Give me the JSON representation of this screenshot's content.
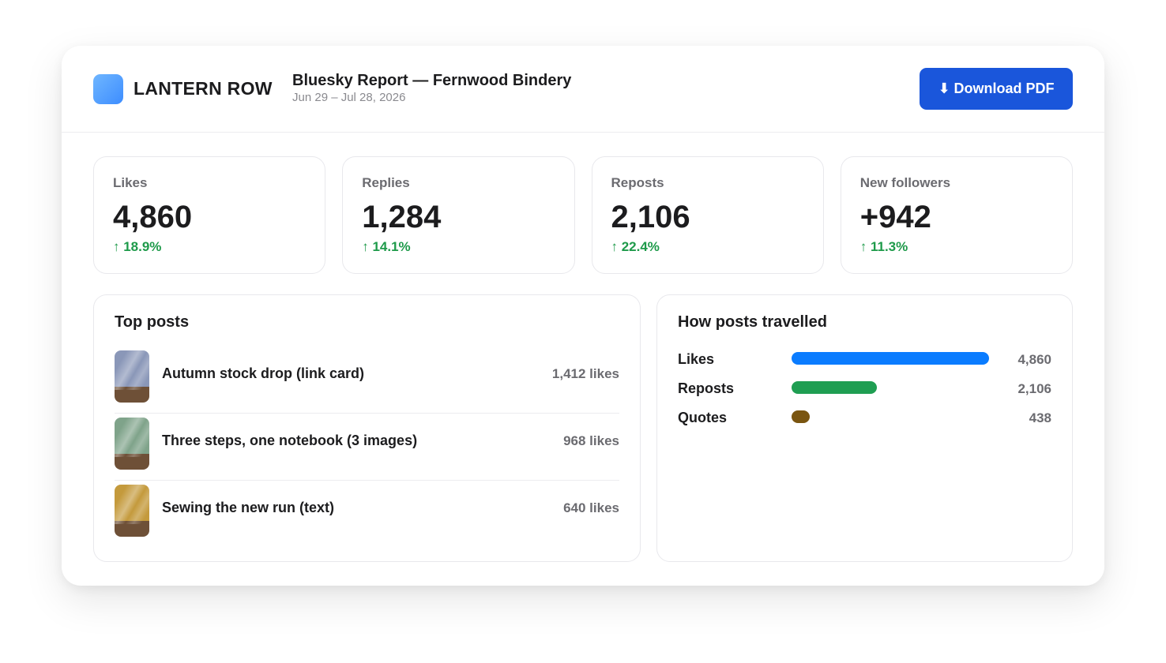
{
  "brand": {
    "name": "LANTERN ROW"
  },
  "report": {
    "title": "Bluesky Report — Fernwood Bindery",
    "date_range": "Jun 29 – Jul 28, 2026",
    "download_label": "⬇ Download PDF"
  },
  "colors": {
    "accent": "#1a56db",
    "positive": "#1e9a4a",
    "likes_bar": "#0a7cff",
    "reposts_bar": "#1f9e52",
    "quotes_bar": "#7a5510"
  },
  "kpis": [
    {
      "label": "Likes",
      "value": "4,860",
      "delta": "↑ 18.9%"
    },
    {
      "label": "Replies",
      "value": "1,284",
      "delta": "↑ 14.1%"
    },
    {
      "label": "Reposts",
      "value": "2,106",
      "delta": "↑ 22.4%"
    },
    {
      "label": "New followers",
      "value": "+942",
      "delta": "↑ 11.3%"
    }
  ],
  "top_posts": {
    "title": "Top posts",
    "items": [
      {
        "title": "Autumn stock drop (link card)",
        "likes": "1,412 likes",
        "thumb_color": "#8a97b8"
      },
      {
        "title": "Three steps, one notebook (3 images)",
        "likes": "968 likes",
        "thumb_color": "#7fa38a"
      },
      {
        "title": "Sewing the new run (text)",
        "likes": "640 likes",
        "thumb_color": "#c49a3c"
      }
    ]
  },
  "travel": {
    "title": "How posts travelled",
    "max": 4860,
    "items": [
      {
        "label": "Likes",
        "value": 4860,
        "display": "4,860",
        "color": "#0a7cff"
      },
      {
        "label": "Reposts",
        "value": 2106,
        "display": "2,106",
        "color": "#1f9e52"
      },
      {
        "label": "Quotes",
        "value": 438,
        "display": "438",
        "color": "#7a5510"
      }
    ]
  }
}
